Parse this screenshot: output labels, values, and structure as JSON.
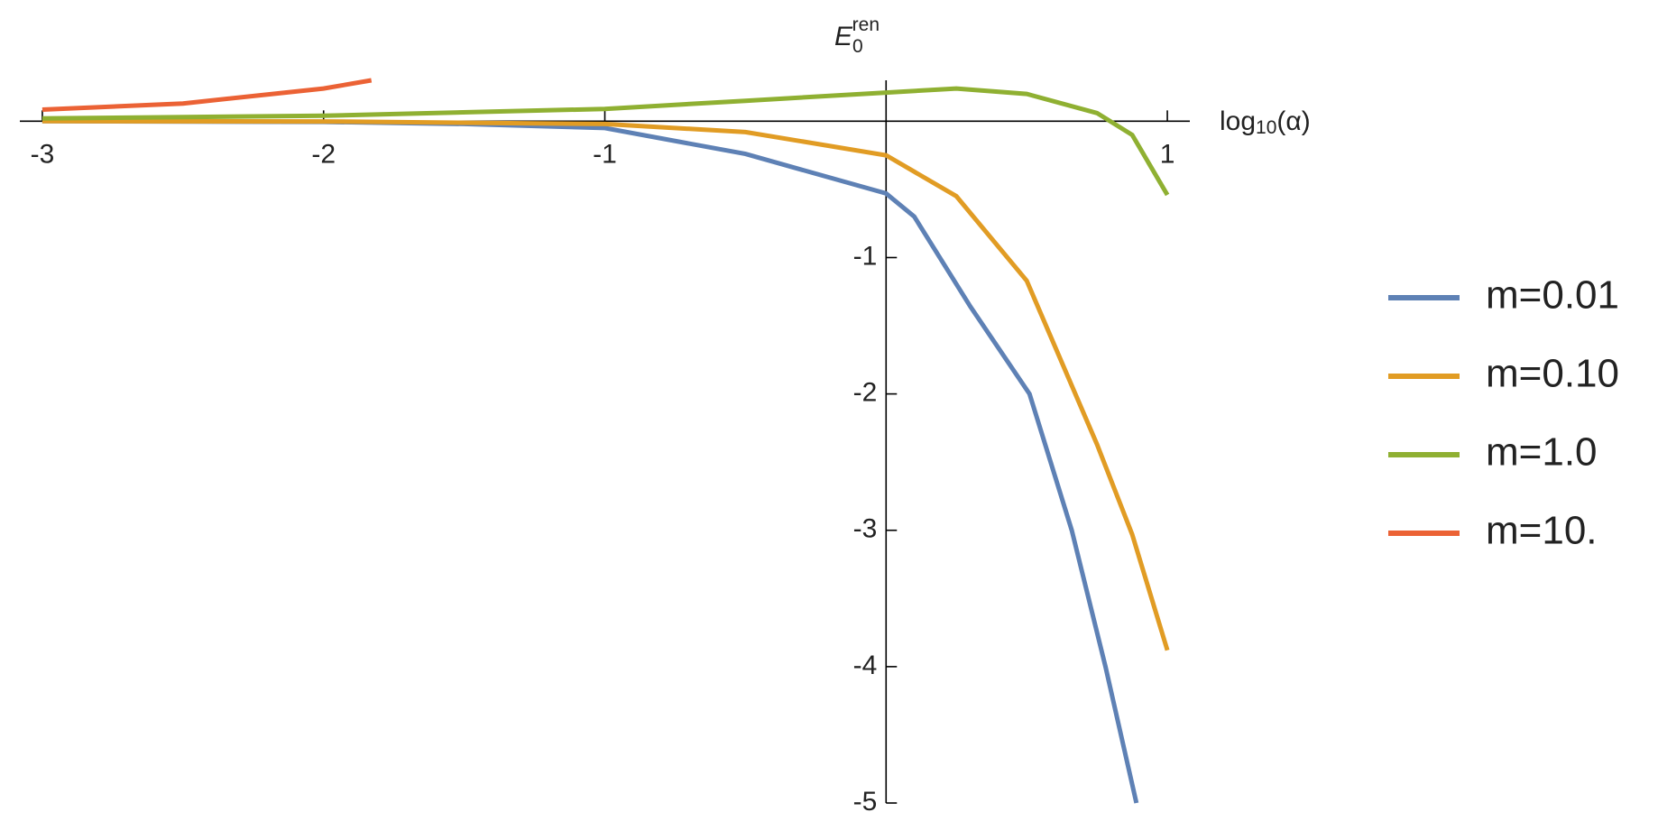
{
  "chart_data": {
    "type": "line",
    "x_label": {
      "base": "log",
      "sub": "10",
      "rest": "(α)"
    },
    "y_label": {
      "base": "E",
      "sub": "0",
      "sup": "ren"
    },
    "xlim": [
      -3.08,
      1.08
    ],
    "ylim": [
      -5,
      0.3
    ],
    "xticks": [
      -3,
      -2,
      -1,
      1
    ],
    "yticks": [
      -1,
      -2,
      -3,
      -4,
      -5
    ],
    "legend": "right",
    "series": [
      {
        "name": "m=0.01",
        "color": "#5e81b5",
        "x": [
          -3,
          -2,
          -1.5,
          -1,
          -0.5,
          0,
          0.1,
          0.3,
          0.51,
          0.66,
          0.78,
          0.89
        ],
        "values": [
          0,
          -0.005,
          -0.02,
          -0.05,
          -0.24,
          -0.53,
          -0.7,
          -1.36,
          -2,
          -3,
          -4,
          -5
        ]
      },
      {
        "name": "m=0.10",
        "color": "#e19c24",
        "x": [
          -3,
          -2,
          -1,
          -0.5,
          0,
          0.25,
          0.5,
          0.75,
          0.875,
          1
        ],
        "values": [
          0,
          -0.002,
          -0.02,
          -0.08,
          -0.25,
          -0.55,
          -1.17,
          -2.37,
          -3.03,
          -3.88
        ]
      },
      {
        "name": "m=1.0",
        "color": "#8fb032",
        "x": [
          -3,
          -2,
          -1,
          -0.5,
          0,
          0.25,
          0.5,
          0.75,
          0.875,
          1
        ],
        "values": [
          0.02,
          0.04,
          0.09,
          0.15,
          0.21,
          0.24,
          0.2,
          0.06,
          -0.1,
          -0.54
        ]
      },
      {
        "name": "m=10.",
        "color": "#eb6235",
        "x": [
          -3,
          -2.5,
          -2,
          -1.83
        ],
        "values": [
          0.085,
          0.13,
          0.24,
          0.3
        ]
      }
    ]
  }
}
